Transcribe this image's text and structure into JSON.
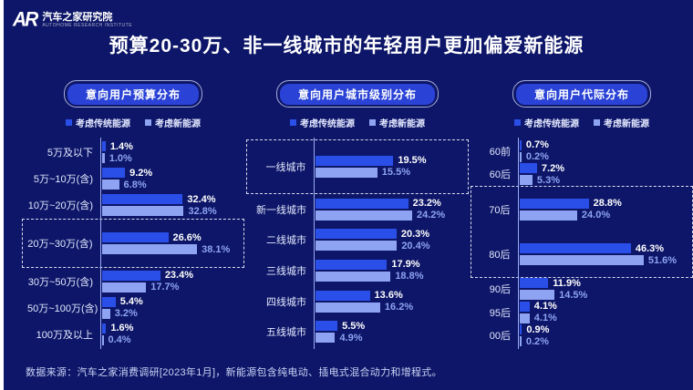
{
  "header": {
    "logo_mark": "AR",
    "logo_text": "汽车之家研究院",
    "logo_subtext": "AUTOHOME RESEARCH INSTITUTE",
    "title": "预算20-30万、非一线城市的年轻用户更加偏爱新能源"
  },
  "legend": {
    "traditional": "考虑传统能源",
    "new_energy": "考虑新能源"
  },
  "colors": {
    "background": "#0d1668",
    "edge_strip": "#ffffff",
    "traditional": "#2a4fe9",
    "new_energy": "#8ea4f2",
    "pill_fill": "#2a43d6",
    "axis_line": "#9aabf2",
    "highlight_dash": "#d9dded"
  },
  "footer": {
    "source": "数据来源：汽车之家消费调研[2023年1月]，新能源包含纯电动、插电式混合动力和增程式。"
  },
  "chart_data": [
    {
      "type": "bar",
      "orientation": "horizontal",
      "title": "意向用户预算分布",
      "categories": [
        "5万及以下",
        "5万~10万(含)",
        "10万~20万(含)",
        "20万~30万(含)",
        "30万~50万(含)",
        "50万~100万(含)",
        "100万及以上"
      ],
      "series": [
        {
          "name": "考虑传统能源",
          "values": [
            1.4,
            9.2,
            32.4,
            26.6,
            23.4,
            5.4,
            1.6
          ]
        },
        {
          "name": "考虑新能源",
          "values": [
            1.0,
            6.8,
            32.8,
            38.1,
            17.7,
            3.2,
            0.4
          ]
        }
      ],
      "value_suffix": "%",
      "highlight_rows": [
        3
      ],
      "xlim": [
        0,
        55
      ],
      "label_width": 80,
      "grid": false,
      "legend_position": "top"
    },
    {
      "type": "bar",
      "orientation": "horizontal",
      "title": "意向用户城市级别分布",
      "categories": [
        "一线城市",
        "新一线城市",
        "二线城市",
        "三线城市",
        "四线城市",
        "五线城市"
      ],
      "series": [
        {
          "name": "考虑传统能源",
          "values": [
            19.5,
            23.2,
            20.3,
            17.9,
            13.6,
            5.5
          ]
        },
        {
          "name": "考虑新能源",
          "values": [
            15.5,
            24.2,
            20.4,
            18.8,
            16.2,
            4.9
          ]
        }
      ],
      "value_suffix": "%",
      "highlight_rows": [
        0
      ],
      "xlim": [
        0,
        37
      ],
      "label_width": 68,
      "grid": false,
      "legend_position": "top"
    },
    {
      "type": "bar",
      "orientation": "horizontal",
      "title": "意向用户代际分布",
      "categories": [
        "60前",
        "60后",
        "70后",
        "80后",
        "90后",
        "95后",
        "00后"
      ],
      "series": [
        {
          "name": "考虑传统能源",
          "values": [
            0.7,
            7.2,
            28.8,
            46.3,
            11.9,
            4.1,
            0.9
          ]
        },
        {
          "name": "考虑新能源",
          "values": [
            0.2,
            5.3,
            24.0,
            51.6,
            14.5,
            4.1,
            0.2
          ]
        }
      ],
      "value_suffix": "%",
      "highlight_rows": [
        2,
        3
      ],
      "xlim": [
        0,
        70
      ],
      "label_width": 46,
      "grid": false,
      "legend_position": "top"
    }
  ]
}
